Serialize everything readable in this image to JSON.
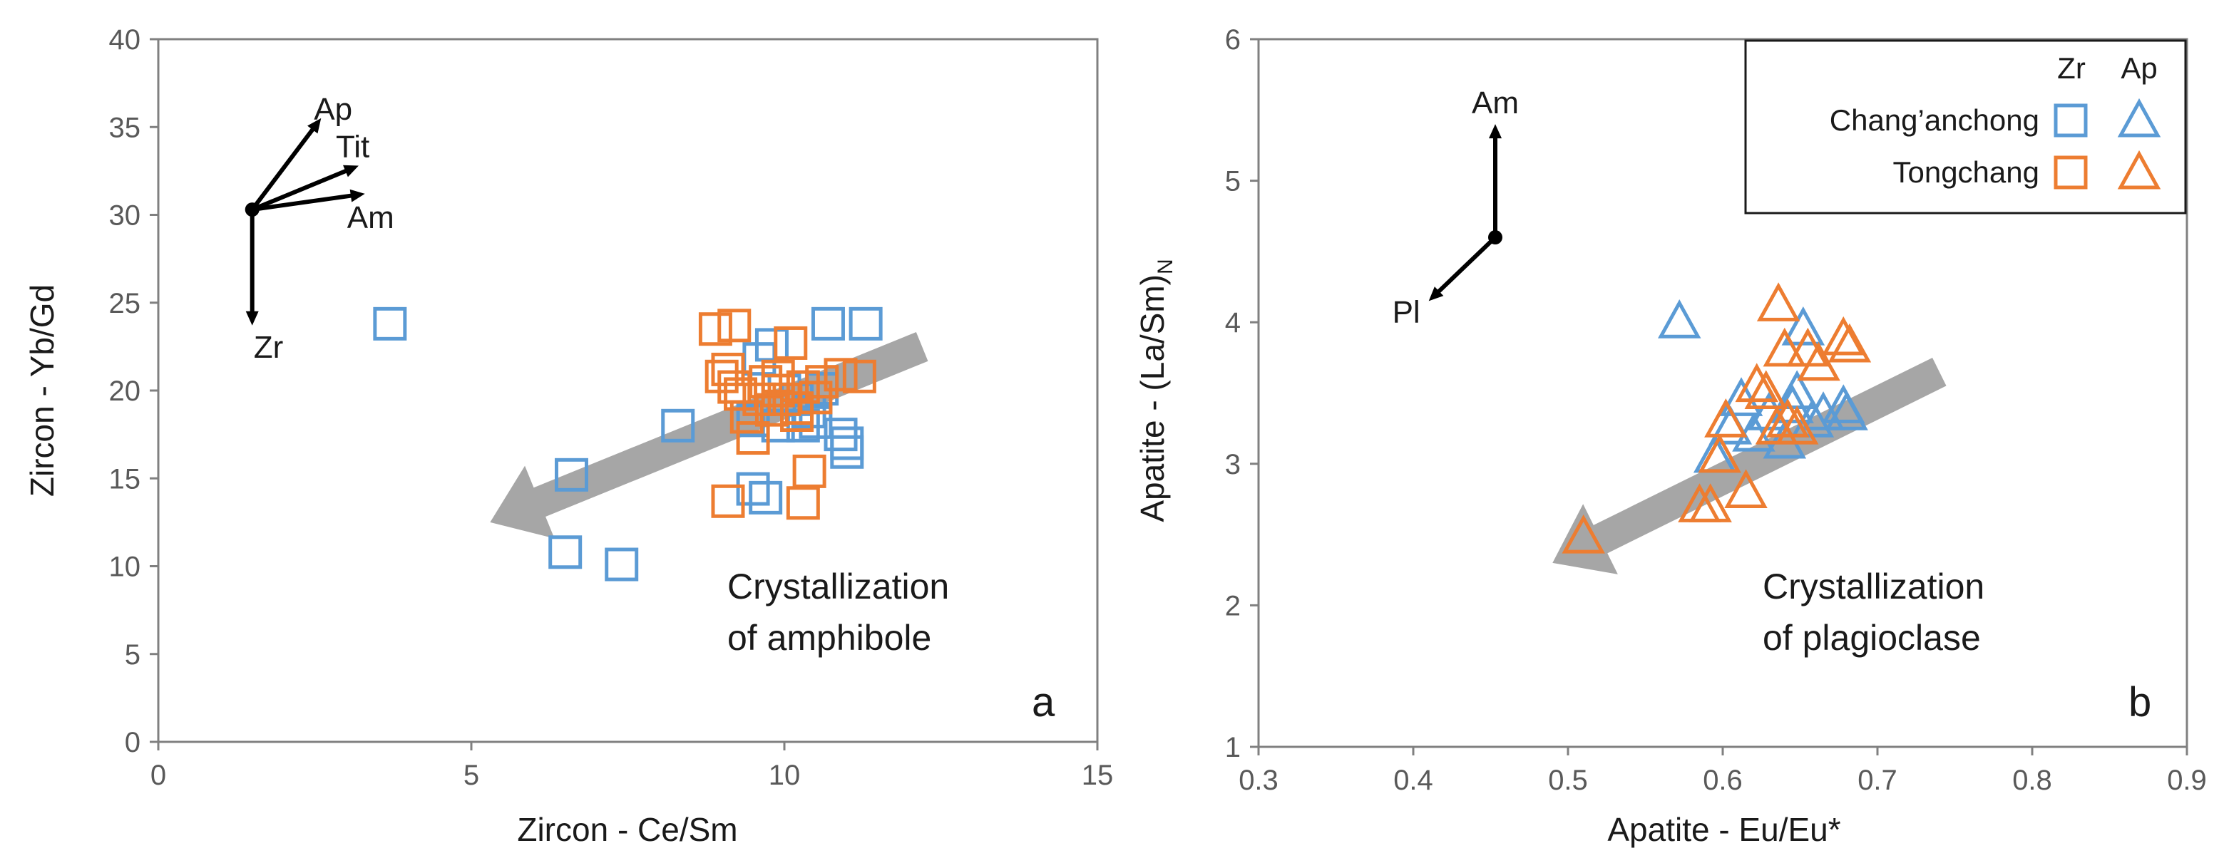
{
  "colors": {
    "chang": "#5B9BD5",
    "tong": "#ED7D31",
    "arrow": "#A6A6A6",
    "axis": "#808080",
    "text": "#1a1a1a"
  },
  "chart_data": [
    {
      "type": "scatter",
      "panel_label": "a",
      "xlabel": "Zircon - Ce/Sm",
      "ylabel": "Zircon - Yb/Gd",
      "xlim": [
        0,
        15
      ],
      "ylim": [
        0,
        40
      ],
      "xticks": [
        "0",
        "5",
        "10",
        "15"
      ],
      "yticks": [
        "0",
        "5",
        "10",
        "15",
        "20",
        "25",
        "30",
        "35",
        "40"
      ],
      "annotation": [
        "Crystallization",
        "of amphibole"
      ],
      "trend_arrow": {
        "from": [
          12.2,
          22.5
        ],
        "to": [
          5.3,
          12.5
        ]
      },
      "vectors": {
        "origin": [
          1.5,
          30.3
        ],
        "items": [
          {
            "label": "Ap",
            "to": [
              2.6,
              35.5
            ]
          },
          {
            "label": "Tit",
            "to": [
              3.2,
              32.8
            ]
          },
          {
            "label": "Am",
            "to": [
              3.3,
              31.2
            ]
          },
          {
            "label": "Zr",
            "to": [
              1.5,
              23.7
            ]
          }
        ]
      },
      "series": [
        {
          "name": "Chang'anchong Zr",
          "marker": "square",
          "color": "#5B9BD5",
          "points": [
            [
              3.7,
              23.8
            ],
            [
              6.5,
              10.8
            ],
            [
              6.6,
              15.2
            ],
            [
              7.4,
              10.1
            ],
            [
              8.3,
              18.0
            ],
            [
              9.5,
              14.4
            ],
            [
              9.7,
              13.9
            ],
            [
              9.6,
              21.8
            ],
            [
              9.8,
              22.6
            ],
            [
              10.0,
              20.0
            ],
            [
              9.5,
              18.3
            ],
            [
              9.9,
              18.0
            ],
            [
              10.2,
              19.5
            ],
            [
              10.4,
              18.8
            ],
            [
              10.6,
              20.1
            ],
            [
              10.9,
              17.5
            ],
            [
              11.0,
              16.5
            ],
            [
              11.0,
              17.0
            ],
            [
              10.5,
              18.2
            ],
            [
              10.7,
              23.8
            ],
            [
              11.3,
              23.8
            ],
            [
              10.3,
              18.0
            ]
          ]
        },
        {
          "name": "Tongchang Zr",
          "marker": "square",
          "color": "#ED7D31",
          "points": [
            [
              8.9,
              23.5
            ],
            [
              9.2,
              23.7
            ],
            [
              9.0,
              20.8
            ],
            [
              9.1,
              21.2
            ],
            [
              9.2,
              20.2
            ],
            [
              9.3,
              19.8
            ],
            [
              9.4,
              18.5
            ],
            [
              9.5,
              17.3
            ],
            [
              9.6,
              19.5
            ],
            [
              9.7,
              20.5
            ],
            [
              9.9,
              20.8
            ],
            [
              10.0,
              19.5
            ],
            [
              10.1,
              22.7
            ],
            [
              10.2,
              19.0
            ],
            [
              9.8,
              18.9
            ],
            [
              10.3,
              20.2
            ],
            [
              10.5,
              19.6
            ],
            [
              10.6,
              20.5
            ],
            [
              10.9,
              20.9
            ],
            [
              11.2,
              20.8
            ],
            [
              10.4,
              15.4
            ],
            [
              10.3,
              13.6
            ],
            [
              9.1,
              13.7
            ],
            [
              9.9,
              20.0
            ],
            [
              10.2,
              18.6
            ]
          ]
        }
      ]
    },
    {
      "type": "scatter",
      "panel_label": "b",
      "xlabel": "Apatite - Eu/Eu*",
      "ylabel": "Apatite - (La/Sm)N",
      "ylabel_main": "Apatite - (La/Sm)",
      "ylabel_sub": "N",
      "xlim": [
        0.3,
        0.9
      ],
      "ylim": [
        1,
        6
      ],
      "xticks": [
        "0.3",
        "0.4",
        "0.5",
        "0.6",
        "0.7",
        "0.8",
        "0.9"
      ],
      "yticks": [
        "1",
        "2",
        "3",
        "4",
        "5",
        "6"
      ],
      "annotation": [
        "Crystallization",
        "of plagioclase"
      ],
      "trend_arrow": {
        "from": [
          0.74,
          3.65
        ],
        "to": [
          0.49,
          2.3
        ]
      },
      "vectors": {
        "origin": [
          0.453,
          4.6
        ],
        "items": [
          {
            "label": "Am",
            "to": [
              0.453,
              5.4
            ]
          },
          {
            "label": "Pl",
            "to": [
              0.41,
              4.15
            ]
          }
        ]
      },
      "series": [
        {
          "name": "Chang'anchong Ap",
          "marker": "triangle",
          "color": "#5B9BD5",
          "points": [
            [
              0.572,
              4.0
            ],
            [
              0.595,
              3.05
            ],
            [
              0.605,
              3.25
            ],
            [
              0.612,
              3.45
            ],
            [
              0.62,
              3.2
            ],
            [
              0.63,
              3.35
            ],
            [
              0.64,
              3.15
            ],
            [
              0.645,
              3.4
            ],
            [
              0.648,
              3.5
            ],
            [
              0.652,
              3.95
            ],
            [
              0.658,
              3.3
            ],
            [
              0.665,
              3.35
            ],
            [
              0.678,
              3.4
            ],
            [
              0.68,
              3.35
            ]
          ]
        },
        {
          "name": "Tongchang Ap",
          "marker": "triangle",
          "color": "#ED7D31",
          "points": [
            [
              0.51,
              2.48
            ],
            [
              0.585,
              2.7
            ],
            [
              0.592,
              2.7
            ],
            [
              0.615,
              2.8
            ],
            [
              0.598,
              3.05
            ],
            [
              0.602,
              3.3
            ],
            [
              0.622,
              3.55
            ],
            [
              0.635,
              3.25
            ],
            [
              0.642,
              3.3
            ],
            [
              0.648,
              3.25
            ],
            [
              0.636,
              4.12
            ],
            [
              0.64,
              3.8
            ],
            [
              0.655,
              3.8
            ],
            [
              0.662,
              3.7
            ],
            [
              0.678,
              3.88
            ],
            [
              0.682,
              3.83
            ],
            [
              0.628,
              3.5
            ]
          ]
        }
      ]
    }
  ],
  "legend": {
    "col_headers": [
      "Zr",
      "Ap"
    ],
    "rows": [
      {
        "label": "Chang’anchong",
        "color": "#5B9BD5"
      },
      {
        "label": "Tongchang",
        "color": "#ED7D31"
      }
    ]
  }
}
